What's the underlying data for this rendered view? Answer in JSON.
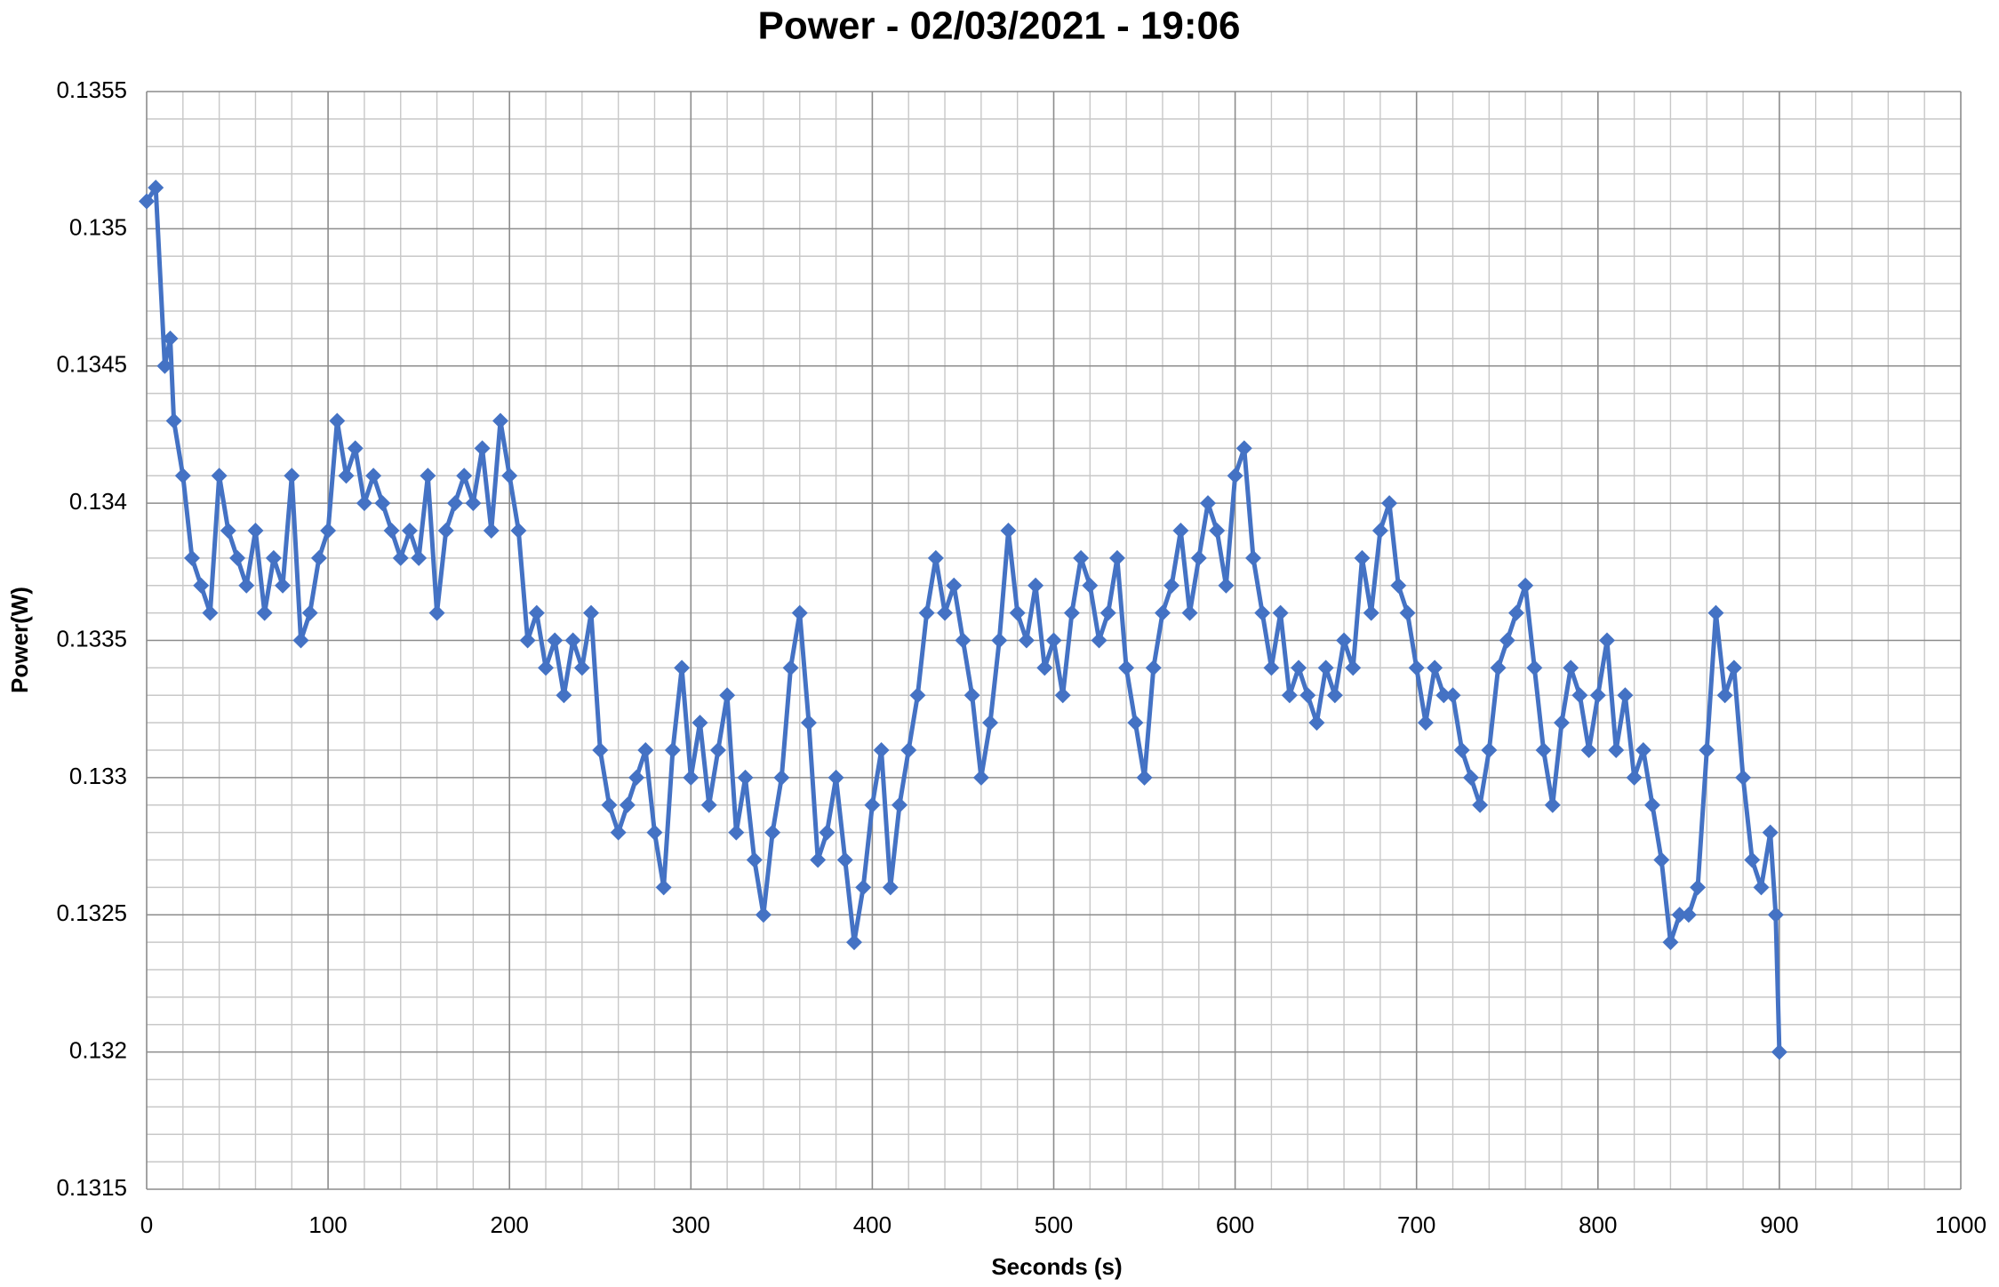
{
  "chart_data": {
    "type": "line",
    "title": "Power - 02/03/2021 - 19:06",
    "x_label": "Seconds (s)",
    "y_label": "Power(W)",
    "xlim": [
      0,
      1000
    ],
    "xticks": [
      0,
      100,
      200,
      300,
      400,
      500,
      600,
      700,
      800,
      900,
      1000
    ],
    "ylim": [
      0.1315,
      0.1355
    ],
    "yticks": [
      0.1315,
      0.132,
      0.1325,
      0.133,
      0.1335,
      0.134,
      0.1345,
      0.135,
      0.1355
    ],
    "grid": true,
    "minor_grid": true,
    "series": [
      {
        "name": "Power",
        "color": "#4472c4",
        "x": [
          0,
          5,
          10,
          13,
          15,
          20,
          25,
          30,
          35,
          40,
          45,
          50,
          55,
          60,
          65,
          70,
          75,
          80,
          85,
          90,
          95,
          100,
          105,
          110,
          115,
          120,
          125,
          130,
          135,
          140,
          145,
          150,
          155,
          160,
          165,
          170,
          175,
          180,
          185,
          190,
          195,
          200,
          205,
          210,
          215,
          220,
          225,
          230,
          235,
          240,
          245,
          250,
          255,
          260,
          265,
          270,
          275,
          280,
          285,
          290,
          295,
          300,
          305,
          310,
          315,
          320,
          325,
          330,
          335,
          340,
          345,
          350,
          355,
          360,
          365,
          370,
          375,
          380,
          385,
          390,
          395,
          400,
          405,
          410,
          415,
          420,
          425,
          430,
          435,
          440,
          445,
          450,
          455,
          460,
          465,
          470,
          475,
          480,
          485,
          490,
          495,
          500,
          505,
          510,
          515,
          520,
          525,
          530,
          535,
          540,
          545,
          550,
          555,
          560,
          565,
          570,
          575,
          580,
          585,
          590,
          595,
          600,
          605,
          610,
          615,
          620,
          625,
          630,
          635,
          640,
          645,
          650,
          655,
          660,
          665,
          670,
          675,
          680,
          685,
          690,
          695,
          700,
          705,
          710,
          715,
          720,
          725,
          730,
          735,
          740,
          745,
          750,
          755,
          760,
          765,
          770,
          775,
          780,
          785,
          790,
          795,
          800,
          805,
          810,
          815,
          820,
          825,
          830,
          835,
          840,
          845,
          850,
          855,
          860,
          865,
          870,
          875,
          880,
          885,
          890,
          895,
          898,
          900
        ],
        "values": [
          0.1351,
          0.13515,
          0.1345,
          0.1346,
          0.1343,
          0.1341,
          0.1338,
          0.1337,
          0.1336,
          0.1341,
          0.1339,
          0.1338,
          0.1337,
          0.1339,
          0.1336,
          0.1338,
          0.1337,
          0.1341,
          0.1335,
          0.1336,
          0.1338,
          0.1339,
          0.1343,
          0.1341,
          0.1342,
          0.134,
          0.1341,
          0.134,
          0.1339,
          0.1338,
          0.1339,
          0.1338,
          0.1341,
          0.1336,
          0.1339,
          0.134,
          0.1341,
          0.134,
          0.1342,
          0.1339,
          0.1343,
          0.1341,
          0.1339,
          0.1335,
          0.1336,
          0.1334,
          0.1335,
          0.1333,
          0.1335,
          0.1334,
          0.1336,
          0.1331,
          0.1329,
          0.1328,
          0.1329,
          0.133,
          0.1331,
          0.1328,
          0.1326,
          0.1331,
          0.1334,
          0.133,
          0.1332,
          0.1329,
          0.1331,
          0.1333,
          0.1328,
          0.133,
          0.1327,
          0.1325,
          0.1328,
          0.133,
          0.1334,
          0.1336,
          0.1332,
          0.1327,
          0.1328,
          0.133,
          0.1327,
          0.1324,
          0.1326,
          0.1329,
          0.1331,
          0.1326,
          0.1329,
          0.1331,
          0.1333,
          0.1336,
          0.1338,
          0.1336,
          0.1337,
          0.1335,
          0.1333,
          0.133,
          0.1332,
          0.1335,
          0.1339,
          0.1336,
          0.1335,
          0.1337,
          0.1334,
          0.1335,
          0.1333,
          0.1336,
          0.1338,
          0.1337,
          0.1335,
          0.1336,
          0.1338,
          0.1334,
          0.1332,
          0.133,
          0.1334,
          0.1336,
          0.1337,
          0.1339,
          0.1336,
          0.1338,
          0.134,
          0.1339,
          0.1337,
          0.1341,
          0.1342,
          0.1338,
          0.1336,
          0.1334,
          0.1336,
          0.1333,
          0.1334,
          0.1333,
          0.1332,
          0.1334,
          0.1333,
          0.1335,
          0.1334,
          0.1338,
          0.1336,
          0.1339,
          0.134,
          0.1337,
          0.1336,
          0.1334,
          0.1332,
          0.1334,
          0.1333,
          0.1333,
          0.1331,
          0.133,
          0.1329,
          0.1331,
          0.1334,
          0.1335,
          0.1336,
          0.1337,
          0.1334,
          0.1331,
          0.1329,
          0.1332,
          0.1334,
          0.1333,
          0.1331,
          0.1333,
          0.1335,
          0.1331,
          0.1333,
          0.133,
          0.1331,
          0.1329,
          0.1327,
          0.1324,
          0.1325,
          0.1325,
          0.1326,
          0.1331,
          0.1336,
          0.1333,
          0.1334,
          0.133,
          0.1327,
          0.1326,
          0.1328,
          0.1325,
          0.132
        ]
      }
    ]
  }
}
